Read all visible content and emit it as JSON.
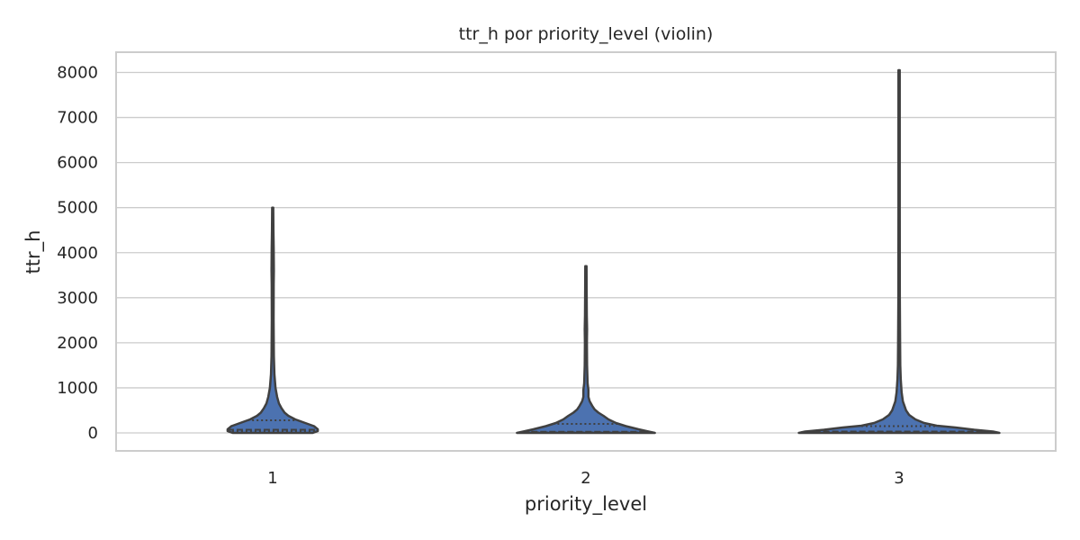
{
  "chart_data": {
    "type": "violin",
    "title": "ttr_h por priority_level (violin)",
    "xlabel": "priority_level",
    "ylabel": "ttr_h",
    "ylim": [
      -400,
      8450
    ],
    "yticks": [
      0,
      1000,
      2000,
      3000,
      4000,
      5000,
      6000,
      7000,
      8000
    ],
    "y_tick_labels": [
      "0",
      "1000",
      "2000",
      "3000",
      "4000",
      "5000",
      "6000",
      "7000",
      "8000"
    ],
    "grid": true,
    "categories": [
      "1",
      "2",
      "3"
    ],
    "fill_color": "#4c72b0",
    "line_color": "#404040",
    "inner": "quartile",
    "violins": [
      {
        "category": "1",
        "min": 0,
        "max": 5000,
        "q1": 40,
        "median": 70,
        "q3": 280,
        "profile": [
          [
            0,
            0.32
          ],
          [
            40,
            0.36
          ],
          [
            80,
            0.36
          ],
          [
            150,
            0.33
          ],
          [
            230,
            0.25
          ],
          [
            300,
            0.18
          ],
          [
            380,
            0.125
          ],
          [
            450,
            0.095
          ],
          [
            550,
            0.07
          ],
          [
            650,
            0.05
          ],
          [
            800,
            0.035
          ],
          [
            1000,
            0.022
          ],
          [
            1300,
            0.014
          ],
          [
            1700,
            0.009
          ],
          [
            2500,
            0.007
          ],
          [
            3300,
            0.008
          ],
          [
            3600,
            0.009
          ],
          [
            4100,
            0.008
          ],
          [
            4500,
            0.006
          ],
          [
            5000,
            0.004
          ]
        ]
      },
      {
        "category": "2",
        "min": 0,
        "max": 3700,
        "q1": 10,
        "median": 25,
        "q3": 200,
        "profile": [
          [
            0,
            0.55
          ],
          [
            30,
            0.5
          ],
          [
            80,
            0.42
          ],
          [
            150,
            0.32
          ],
          [
            220,
            0.24
          ],
          [
            300,
            0.18
          ],
          [
            380,
            0.14
          ],
          [
            450,
            0.1
          ],
          [
            520,
            0.07
          ],
          [
            600,
            0.05
          ],
          [
            700,
            0.03
          ],
          [
            800,
            0.02
          ],
          [
            950,
            0.02
          ],
          [
            1100,
            0.014
          ],
          [
            1500,
            0.009
          ],
          [
            2000,
            0.008
          ],
          [
            2300,
            0.009
          ],
          [
            2600,
            0.007
          ],
          [
            3200,
            0.006
          ],
          [
            3700,
            0.005
          ]
        ]
      },
      {
        "category": "3",
        "min": 0,
        "max": 8050,
        "q1": 10,
        "median": 30,
        "q3": 150,
        "profile": [
          [
            0,
            0.8
          ],
          [
            30,
            0.75
          ],
          [
            70,
            0.6
          ],
          [
            120,
            0.45
          ],
          [
            160,
            0.3
          ],
          [
            220,
            0.2
          ],
          [
            300,
            0.13
          ],
          [
            400,
            0.08
          ],
          [
            500,
            0.055
          ],
          [
            700,
            0.03
          ],
          [
            900,
            0.02
          ],
          [
            1200,
            0.013
          ],
          [
            1500,
            0.009
          ],
          [
            2000,
            0.008
          ],
          [
            3000,
            0.006
          ],
          [
            5000,
            0.005
          ],
          [
            7000,
            0.005
          ],
          [
            8050,
            0.005
          ]
        ]
      }
    ]
  }
}
